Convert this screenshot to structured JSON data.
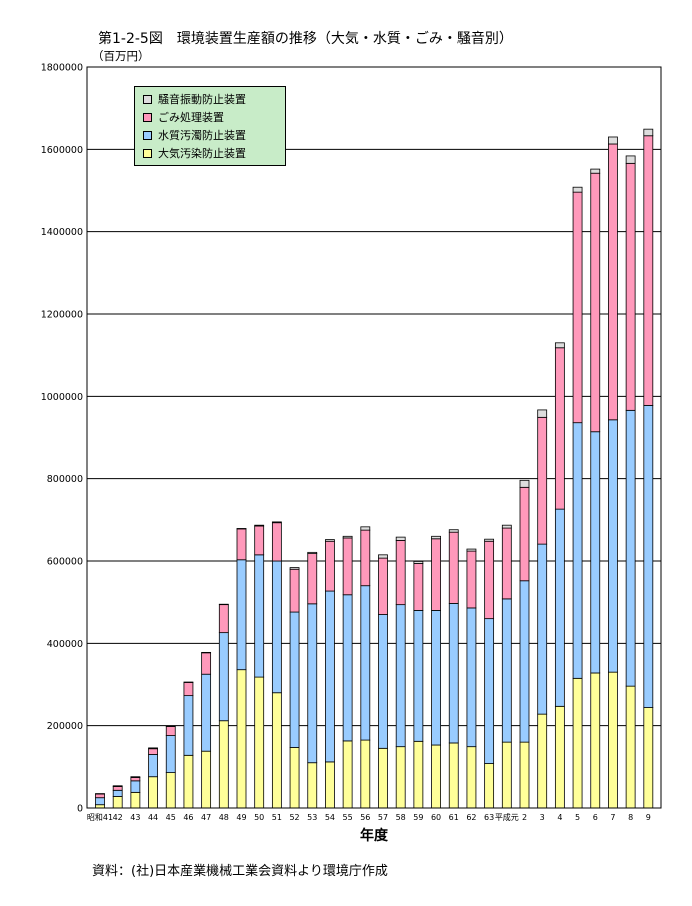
{
  "title": "第1-2-5図　環境装置生産額の推移（大気・水質・ごみ・騒音別）",
  "unit_label": "（百万円）",
  "source": "資料：(社)日本産業機械工業会資料より環境庁作成",
  "chart_data": {
    "type": "bar",
    "stacked": true,
    "xlabel": "年度",
    "ylabel": "（百万円）",
    "ylim": [
      0,
      1800000
    ],
    "yticks": [
      0,
      200000,
      400000,
      600000,
      800000,
      1000000,
      1200000,
      1400000,
      1600000,
      1800000
    ],
    "grid": true,
    "legend_position": "top-left",
    "categories": [
      "昭和41",
      "42",
      "43",
      "44",
      "45",
      "46",
      "47",
      "48",
      "49",
      "50",
      "51",
      "52",
      "53",
      "54",
      "55",
      "56",
      "57",
      "58",
      "59",
      "60",
      "61",
      "62",
      "63",
      "平成元",
      "2",
      "3",
      "4",
      "5",
      "6",
      "7",
      "8",
      "9"
    ],
    "series": [
      {
        "name": "大気汚染防止装置",
        "color": "#ffff99",
        "values": [
          8000,
          28000,
          38000,
          76000,
          86000,
          128000,
          138000,
          212000,
          336000,
          318000,
          280000,
          147000,
          110000,
          112000,
          163000,
          165000,
          145000,
          149000,
          162000,
          153000,
          158000,
          149000,
          108000,
          160000,
          160000,
          228000,
          247000,
          315000,
          328000,
          330000,
          296000,
          244000
        ]
      },
      {
        "name": "水質汚濁防止装置",
        "color": "#99ccff",
        "values": [
          17000,
          15000,
          28000,
          54000,
          90000,
          145000,
          187000,
          214000,
          267000,
          297000,
          320000,
          329000,
          386000,
          415000,
          355000,
          375000,
          325000,
          345000,
          318000,
          327000,
          339000,
          337000,
          352000,
          348000,
          392000,
          413000,
          479000,
          621000,
          586000,
          613000,
          670000,
          734000
        ]
      },
      {
        "name": "ごみ処理装置",
        "color": "#ff99bb",
        "values": [
          9000,
          9000,
          8000,
          14000,
          22000,
          32000,
          52000,
          68000,
          75000,
          70000,
          93000,
          104000,
          122000,
          121000,
          138000,
          135000,
          137000,
          156000,
          114000,
          174000,
          173000,
          138000,
          188000,
          172000,
          227000,
          308000,
          392000,
          560000,
          628000,
          670000,
          600000,
          655000
        ]
      },
      {
        "name": "騒音振動防止装置",
        "color": "#dddddd",
        "values": [
          1000,
          2000,
          2000,
          2000,
          1000,
          1000,
          1000,
          1000,
          1000,
          2000,
          2000,
          4000,
          3000,
          4000,
          4000,
          8000,
          8000,
          8000,
          5000,
          6000,
          6000,
          5000,
          5000,
          7000,
          17000,
          18000,
          12000,
          12000,
          10000,
          17000,
          18000,
          16000
        ]
      }
    ]
  }
}
